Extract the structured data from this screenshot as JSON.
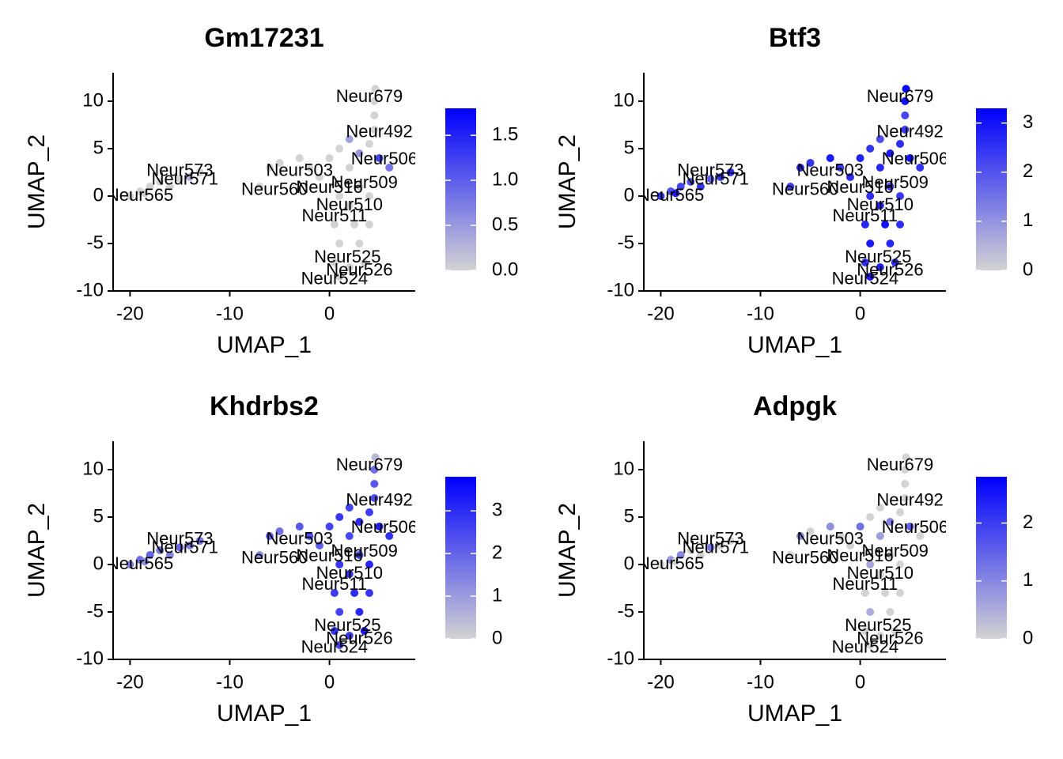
{
  "cells": {
    "x": [
      -20,
      -19,
      -18.5,
      -18,
      -17,
      -16,
      -15,
      -14,
      -13,
      -7,
      -6,
      -5,
      -3,
      -2,
      -1,
      0,
      1,
      2,
      3,
      4,
      5,
      6,
      3,
      1,
      4,
      2,
      0.5,
      2.5,
      4,
      1,
      3,
      0.5,
      2,
      3.5,
      1,
      4.5,
      4.5,
      4.5,
      4.6,
      2
    ],
    "y": [
      0,
      0.5,
      0.3,
      1,
      1.5,
      1,
      1.8,
      2,
      2.5,
      1,
      3,
      3.5,
      4,
      3,
      2,
      4,
      5,
      3,
      4.5,
      5.5,
      4,
      3,
      1,
      0,
      0,
      -1,
      -3,
      -3,
      -3,
      -5,
      -5,
      -7,
      -7.5,
      -7,
      -8.5,
      7,
      8.5,
      10,
      11.3,
      6
    ]
  },
  "cluster_labels": [
    {
      "text": "Neur679",
      "x": 4,
      "y": 10.4
    },
    {
      "text": "Neur492",
      "x": 5,
      "y": 6.7
    },
    {
      "text": "Neur506",
      "x": 5.5,
      "y": 3.8
    },
    {
      "text": "Neur573",
      "x": -15,
      "y": 2.6
    },
    {
      "text": "Neur571",
      "x": -14.5,
      "y": 1.7
    },
    {
      "text": "Neur503",
      "x": -3,
      "y": 2.6
    },
    {
      "text": "Neur509",
      "x": 3.5,
      "y": 1.3
    },
    {
      "text": "Neur560",
      "x": -5.5,
      "y": 0.6
    },
    {
      "text": "Neur516",
      "x": 0,
      "y": 0.8
    },
    {
      "text": "Neur510",
      "x": 2,
      "y": -1
    },
    {
      "text": "Neur511",
      "x": 0.5,
      "y": -2.2
    },
    {
      "text": "Neur525",
      "x": 1.8,
      "y": -6.5
    },
    {
      "text": "Neur526",
      "x": 3,
      "y": -7.9
    },
    {
      "text": "Neur524",
      "x": 0.5,
      "y": -8.8
    },
    {
      "text": "Neur565",
      "x": -19,
      "y": 0
    }
  ],
  "chart_data": [
    {
      "type": "scatter",
      "title": "Gm17231",
      "x_label": "UMAP_1",
      "y_label": "UMAP_2",
      "xlim": [
        -21.7,
        8.6
      ],
      "ylim": [
        -10,
        13
      ],
      "xticks": [
        -20,
        -10,
        0
      ],
      "yticks": [
        -10,
        -5,
        0,
        5,
        10
      ],
      "values": [
        0,
        0,
        0,
        0,
        0,
        0,
        0,
        0.3,
        0,
        0,
        0,
        0,
        0,
        0,
        0,
        0,
        0,
        0,
        0.5,
        0,
        1.2,
        0.8,
        0,
        0,
        0,
        0,
        0,
        0,
        0,
        0,
        0,
        0,
        0,
        0,
        0,
        0,
        0,
        0,
        0,
        0.4
      ],
      "colorlim": [
        0,
        1.8
      ],
      "colorticks": [
        {
          "value": 0,
          "label": "0.0"
        },
        {
          "value": 0.5,
          "label": "0.5"
        },
        {
          "value": 1,
          "label": "1.0"
        },
        {
          "value": 1.5,
          "label": "1.5"
        }
      ],
      "low_color": "#d3d3d3",
      "high_color": "#0000ff"
    },
    {
      "type": "scatter",
      "title": "Btf3",
      "x_label": "UMAP_1",
      "y_label": "UMAP_2",
      "xlim": [
        -21.7,
        8.6
      ],
      "ylim": [
        -10,
        13
      ],
      "xticks": [
        -20,
        -10,
        0
      ],
      "yticks": [
        -10,
        -5,
        0,
        5,
        10
      ],
      "values": [
        2.5,
        2,
        2.8,
        2.2,
        2,
        2.5,
        1.8,
        2.4,
        2.6,
        2.3,
        2.7,
        2.5,
        2.9,
        2.4,
        2.6,
        2.8,
        2.5,
        2.7,
        2.9,
        2.6,
        3,
        2.5,
        2.3,
        2.6,
        2.4,
        2.8,
        2.7,
        3,
        2.6,
        2.9,
        2.7,
        2.5,
        2.8,
        2.6,
        2.9,
        2.4,
        2.2,
        3,
        3.2,
        2.1
      ],
      "colorlim": [
        0,
        3.3
      ],
      "colorticks": [
        0,
        1,
        2,
        3
      ],
      "low_color": "#d3d3d3",
      "high_color": "#0000ff"
    },
    {
      "type": "scatter",
      "title": "Khdrbs2",
      "x_label": "UMAP_1",
      "y_label": "UMAP_2",
      "xlim": [
        -21.7,
        8.6
      ],
      "ylim": [
        -10,
        13
      ],
      "xticks": [
        -20,
        -10,
        0
      ],
      "yticks": [
        -10,
        -5,
        0,
        5,
        10
      ],
      "values": [
        1.5,
        1.8,
        1.2,
        2,
        1.6,
        1.4,
        1.9,
        1.5,
        1.7,
        1.2,
        2,
        1.8,
        2.2,
        2.4,
        2.1,
        2.6,
        2.8,
        2.5,
        3,
        2.7,
        3.2,
        2.9,
        2.6,
        2.8,
        3.1,
        2.9,
        2.7,
        3,
        2.8,
        2.6,
        3.1,
        2.9,
        2.7,
        3.3,
        2.5,
        2.4,
        2.2,
        1.8,
        0.5,
        2.6
      ],
      "colorlim": [
        0,
        3.8
      ],
      "colorticks": [
        0,
        1,
        2,
        3
      ],
      "low_color": "#d3d3d3",
      "high_color": "#0000ff"
    },
    {
      "type": "scatter",
      "title": "Adpgk",
      "x_label": "UMAP_1",
      "y_label": "UMAP_2",
      "xlim": [
        -21.7,
        8.6
      ],
      "ylim": [
        -10,
        13
      ],
      "xticks": [
        -20,
        -10,
        0
      ],
      "yticks": [
        -10,
        -5,
        0,
        5,
        10
      ],
      "values": [
        0,
        0.8,
        0,
        1,
        0,
        0,
        1.2,
        0,
        0,
        0,
        1,
        0,
        0.9,
        0,
        0,
        1.3,
        0,
        0.7,
        1.1,
        0,
        1.5,
        0,
        0,
        0.6,
        0,
        0,
        0,
        0,
        0,
        0.5,
        0,
        0,
        0,
        0,
        0,
        0,
        0,
        0,
        0,
        0
      ],
      "colorlim": [
        0,
        2.8
      ],
      "colorticks": [
        0,
        1,
        2
      ],
      "low_color": "#d3d3d3",
      "high_color": "#0000ff"
    }
  ]
}
